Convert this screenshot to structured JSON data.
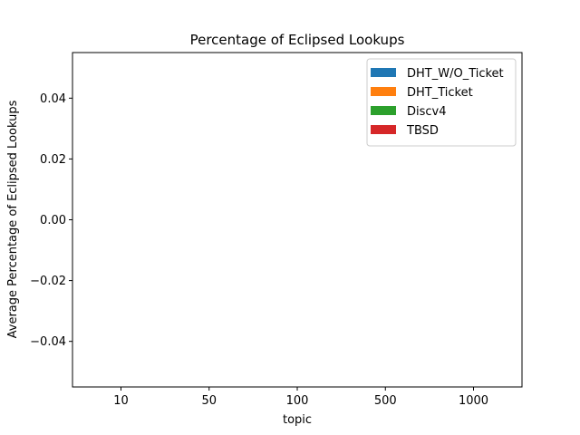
{
  "chart_data": {
    "type": "bar",
    "title": "Percentage of Eclipsed Lookups",
    "xlabel": "topic",
    "ylabel": "Average Percentage of Eclipsed Lookups",
    "categories": [
      "10",
      "50",
      "100",
      "500",
      "1000"
    ],
    "series": [
      {
        "name": "DHT_W/O_Ticket",
        "color": "#1f77b4",
        "values": [
          0,
          0,
          0,
          0,
          0
        ]
      },
      {
        "name": "DHT_Ticket",
        "color": "#ff7f0e",
        "values": [
          0,
          0,
          0,
          0,
          0
        ]
      },
      {
        "name": "Discv4",
        "color": "#2ca02c",
        "values": [
          0,
          0,
          0,
          0,
          0
        ]
      },
      {
        "name": "TBSD",
        "color": "#d62728",
        "values": [
          0,
          0,
          0,
          0,
          0
        ]
      }
    ],
    "ylim": [
      -0.055,
      0.055
    ],
    "yticks": [
      -0.04,
      -0.02,
      0.0,
      0.02,
      0.04
    ],
    "ytick_labels": [
      "−0.04",
      "−0.02",
      "0.00",
      "0.02",
      "0.04"
    ],
    "grid": false,
    "legend_position": "top-right"
  }
}
